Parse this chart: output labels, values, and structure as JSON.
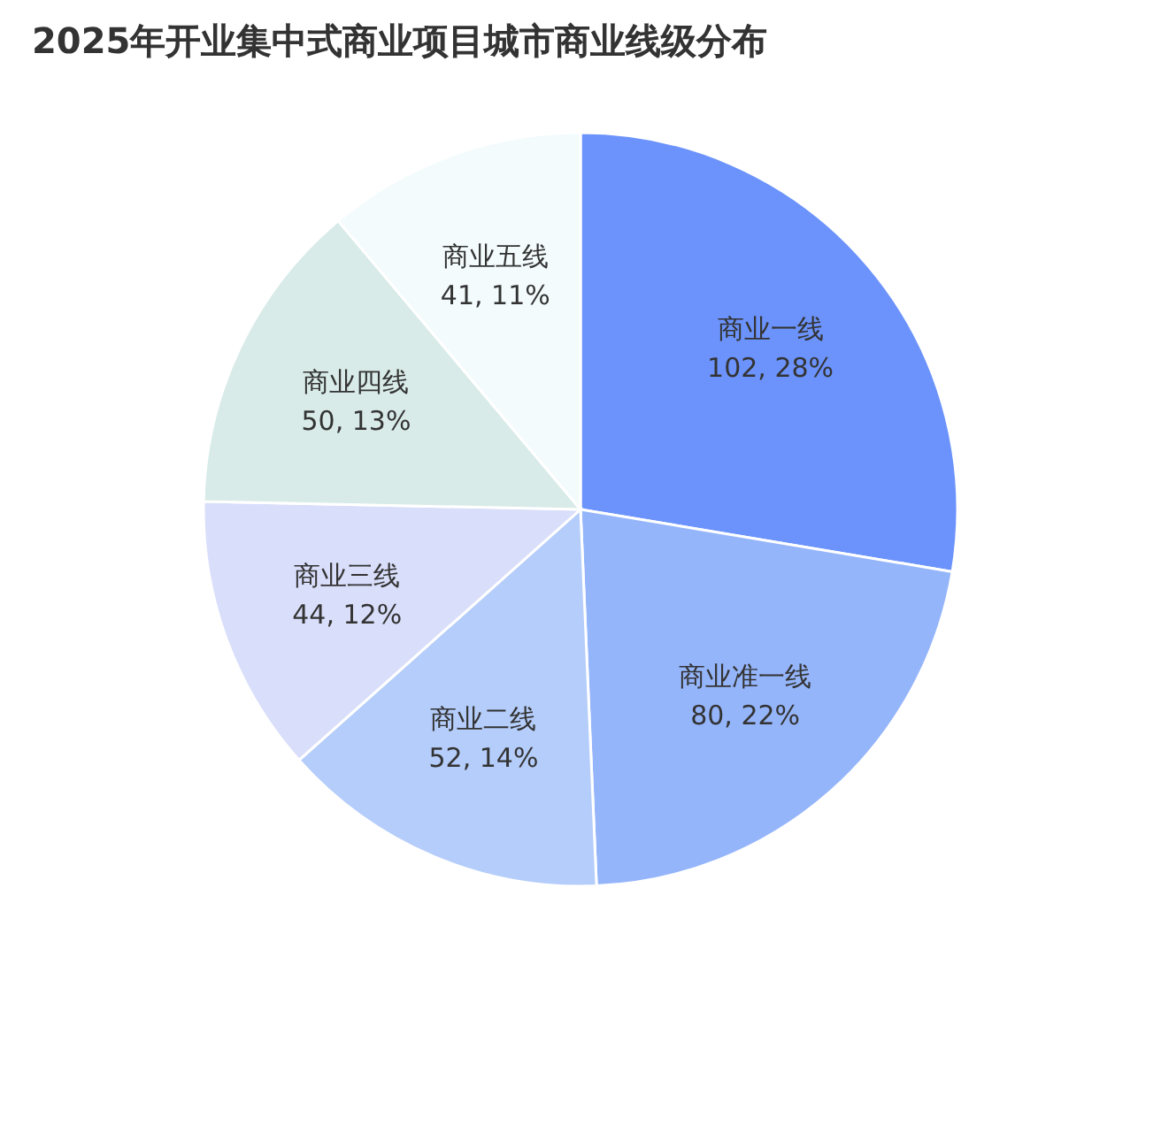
{
  "chart_data": {
    "type": "pie",
    "title": "2025年开业集中式商业项目城市商业线级分布",
    "categories": [
      "商业一线",
      "商业准一线",
      "商业二线",
      "商业三线",
      "商业四线",
      "商业五线"
    ],
    "values": [
      102,
      80,
      52,
      44,
      50,
      41
    ],
    "colors": [
      "#6b93fb",
      "#95b5fb",
      "#b5cdfa",
      "#d9defa",
      "#d8ebe8",
      "#f3fbfd"
    ],
    "value_labels": [
      "102, 28%",
      "80, 22%",
      "52, 14%",
      "44, 12%",
      "50, 13%",
      "41, 11%"
    ],
    "legend": false
  }
}
